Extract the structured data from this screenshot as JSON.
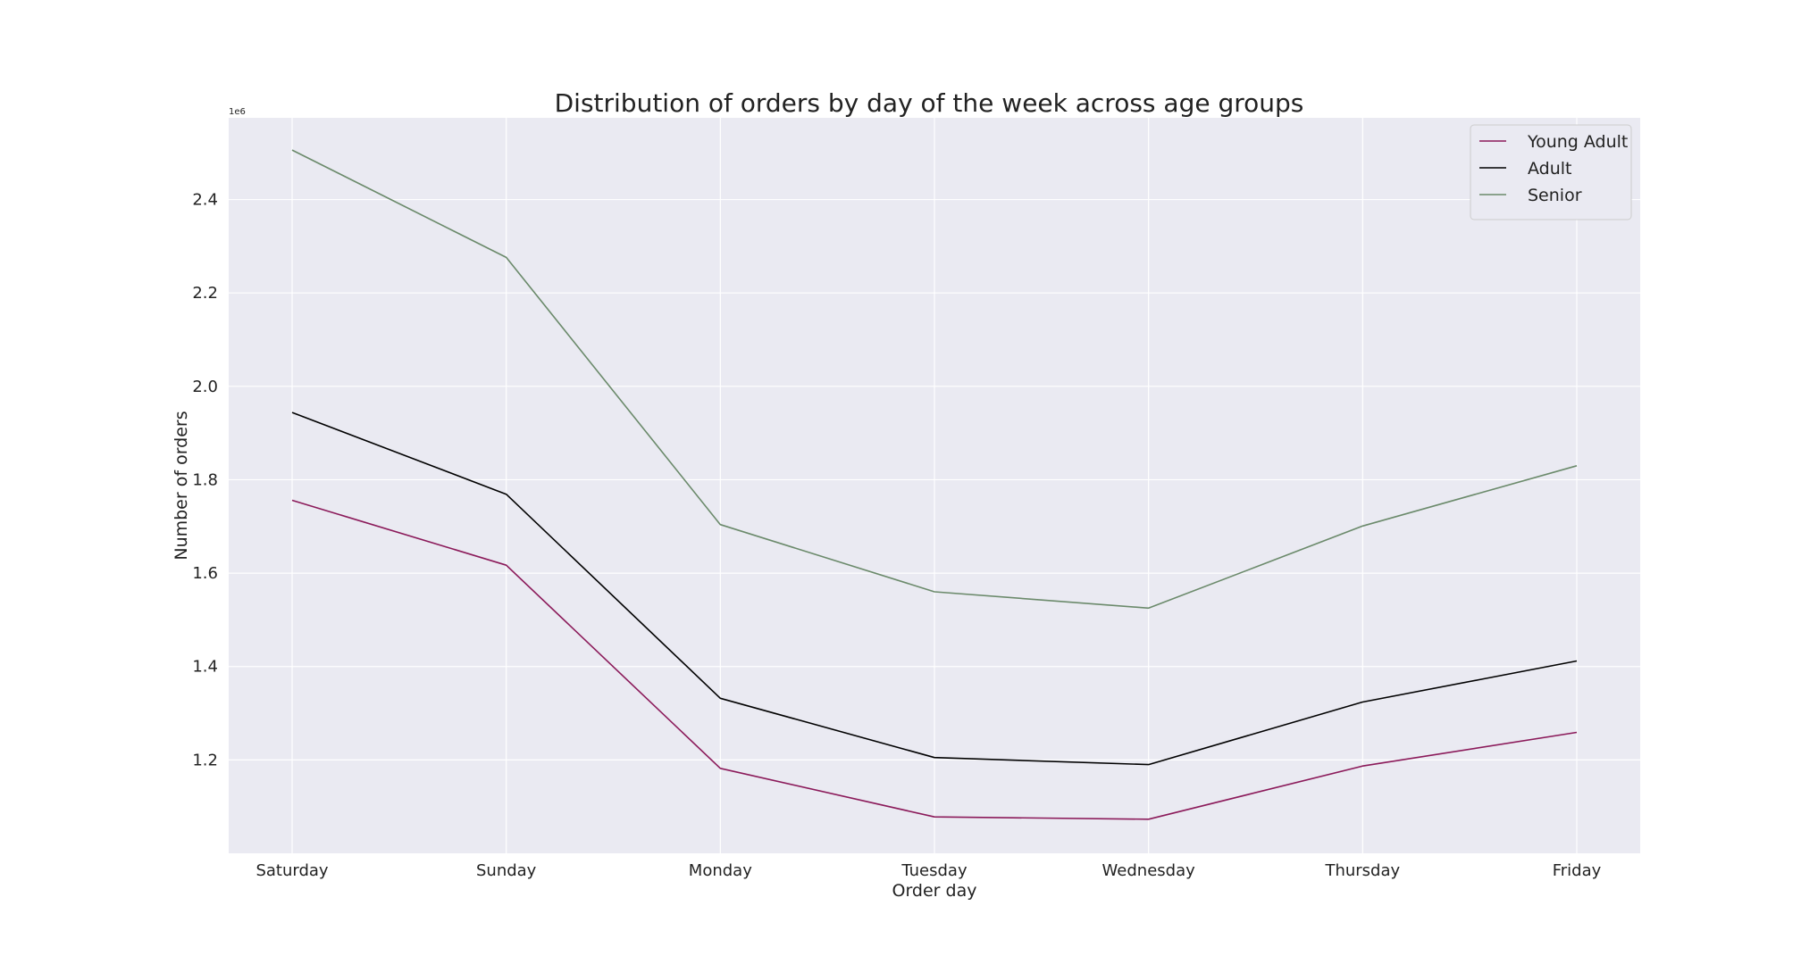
{
  "chart_data": {
    "type": "line",
    "title": "Distribution of orders by day of the week across age groups",
    "xlabel": "Order day",
    "ylabel": "Number of orders",
    "y_offset_label": "1e6",
    "categories": [
      "Saturday",
      "Sunday",
      "Monday",
      "Tuesday",
      "Wednesday",
      "Thursday",
      "Friday"
    ],
    "series": [
      {
        "name": "Young Adult",
        "color": "#8b1a5a",
        "values": [
          1756000,
          1617000,
          1182000,
          1078000,
          1073000,
          1187000,
          1259000
        ]
      },
      {
        "name": "Adult",
        "color": "#000000",
        "values": [
          1944000,
          1769000,
          1332000,
          1205000,
          1190000,
          1324000,
          1412000
        ]
      },
      {
        "name": "Senior",
        "color": "#6b8a6b",
        "values": [
          2506000,
          2276000,
          1704000,
          1560000,
          1525000,
          1701000,
          1830000
        ]
      }
    ],
    "yticks": [
      {
        "value": 1200000,
        "label": "1.2"
      },
      {
        "value": 1400000,
        "label": "1.4"
      },
      {
        "value": 1600000,
        "label": "1.6"
      },
      {
        "value": 1800000,
        "label": "1.8"
      },
      {
        "value": 2000000,
        "label": "2.0"
      },
      {
        "value": 2200000,
        "label": "2.2"
      },
      {
        "value": 2400000,
        "label": "2.4"
      }
    ],
    "ylim": [
      1000000,
      2575000
    ],
    "grid": true,
    "legend_position": "top-right",
    "colors": {
      "plot_background": "#eaeaf2",
      "grid": "#ffffff"
    }
  }
}
